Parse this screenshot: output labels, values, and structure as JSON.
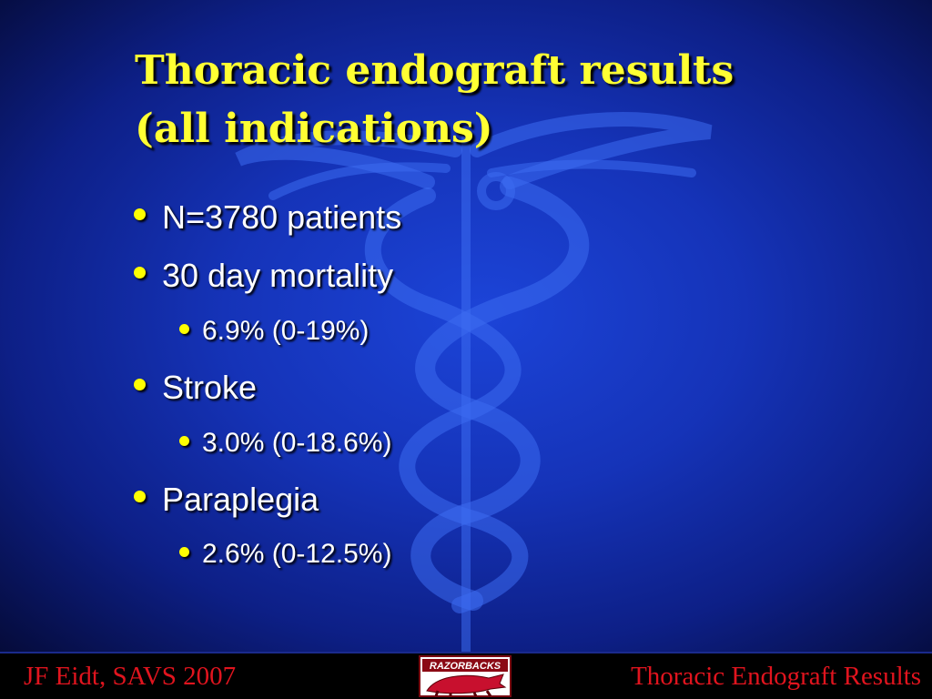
{
  "title": {
    "line1": "Thoracic endograft results",
    "line2": "(all indications)"
  },
  "bullets": [
    {
      "level": 1,
      "text": "N=3780 patients"
    },
    {
      "level": 1,
      "text": "30 day mortality"
    },
    {
      "level": 2,
      "text": "6.9% (0-19%)"
    },
    {
      "level": 1,
      "text": "Stroke"
    },
    {
      "level": 2,
      "text": "3.0% (0-18.6%)"
    },
    {
      "level": 1,
      "text": "Paraplegia"
    },
    {
      "level": 2,
      "text": "2.6% (0-12.5%)"
    }
  ],
  "footer": {
    "left": "JF Eidt, SAVS 2007",
    "right": "Thoracic Endograft Results",
    "logo_text": "RAZORBACKS"
  },
  "colors": {
    "title": "#ffff33",
    "bullet": "#ffff00",
    "footer_text": "#e0141e",
    "background": "#1533b8"
  }
}
